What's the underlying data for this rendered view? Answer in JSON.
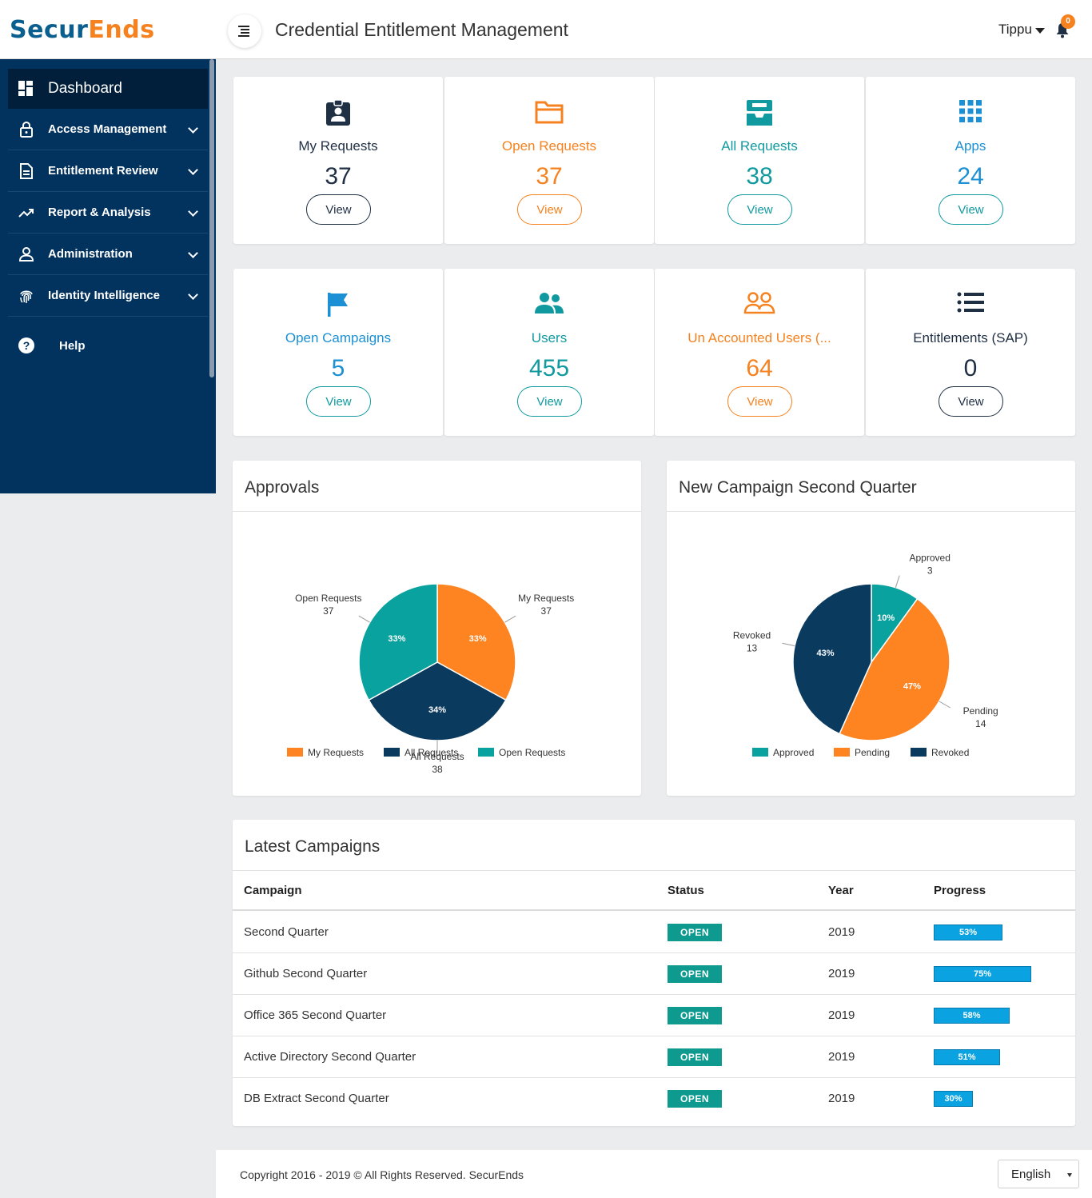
{
  "header": {
    "logo_part1": "Secur",
    "logo_part2": "Ends",
    "title": "Credential Entitlement Management",
    "user": "Tippu",
    "notification_count": "0"
  },
  "sidebar": {
    "items": [
      {
        "label": "Dashboard",
        "icon": "dashboard-icon"
      },
      {
        "label": "Access Management",
        "icon": "lock-icon"
      },
      {
        "label": "Entitlement Review",
        "icon": "document-icon"
      },
      {
        "label": "Report & Analysis",
        "icon": "trend-icon"
      },
      {
        "label": "Administration",
        "icon": "user-icon"
      },
      {
        "label": "Identity Intelligence",
        "icon": "fingerprint-icon"
      },
      {
        "label": "Help",
        "icon": "help-icon"
      }
    ]
  },
  "stats": [
    {
      "label": "My Requests",
      "value": "37",
      "button": "View",
      "icon": "badge-icon",
      "color": "#1f2f44"
    },
    {
      "label": "Open Requests",
      "value": "37",
      "button": "View",
      "icon": "folder-icon",
      "color": "#f5821f"
    },
    {
      "label": "All Requests",
      "value": "38",
      "button": "View",
      "icon": "inbox-icon",
      "color": "#109aa0"
    },
    {
      "label": "Apps",
      "value": "24",
      "button": "View",
      "icon": "apps-grid-icon",
      "color": "#1b90d4"
    },
    {
      "label": "Open Campaigns",
      "value": "5",
      "button": "View",
      "icon": "flag-icon",
      "color": "#1b90d4"
    },
    {
      "label": "Users",
      "value": "455",
      "button": "View",
      "icon": "users-icon",
      "color": "#109aa0"
    },
    {
      "label": "Un Accounted Users (...",
      "value": "64",
      "button": "View",
      "icon": "users-outline-icon",
      "color": "#f5821f"
    },
    {
      "label": "Entitlements (SAP)",
      "value": "0",
      "button": "View",
      "icon": "list-icon",
      "color": "#1f2f44"
    }
  ],
  "approvals": {
    "title": "Approvals"
  },
  "campaign_chart": {
    "title": "New Campaign Second Quarter"
  },
  "chart_data": [
    {
      "type": "pie",
      "title": "Approvals",
      "categories": [
        "My Requests",
        "All Requests",
        "Open Requests"
      ],
      "values": [
        37,
        38,
        37
      ],
      "percent_labels": [
        "33%",
        "34%",
        "33%"
      ],
      "colors": [
        "#fd8421",
        "#0b3a5f",
        "#0aa29e"
      ],
      "legend": "bottom"
    },
    {
      "type": "pie",
      "title": "New Campaign Second Quarter",
      "categories": [
        "Approved",
        "Pending",
        "Revoked"
      ],
      "values": [
        3,
        14,
        13
      ],
      "percent_labels": [
        "10%",
        "47%",
        "43%"
      ],
      "colors": [
        "#0aa29e",
        "#fd8421",
        "#0b3a5f"
      ],
      "legend": "bottom"
    }
  ],
  "campaigns": {
    "title": "Latest Campaigns",
    "headers": [
      "Campaign",
      "Status",
      "Year",
      "Progress"
    ],
    "rows": [
      {
        "name": "Second Quarter",
        "status": "OPEN",
        "year": "2019",
        "progress": "53%",
        "progress_value": 53
      },
      {
        "name": "Github Second Quarter",
        "status": "OPEN",
        "year": "2019",
        "progress": "75%",
        "progress_value": 75
      },
      {
        "name": "Office 365 Second Quarter",
        "status": "OPEN",
        "year": "2019",
        "progress": "58%",
        "progress_value": 58
      },
      {
        "name": "Active Directory Second Quarter",
        "status": "OPEN",
        "year": "2019",
        "progress": "51%",
        "progress_value": 51
      },
      {
        "name": "DB Extract Second Quarter",
        "status": "OPEN",
        "year": "2019",
        "progress": "30%",
        "progress_value": 30
      }
    ]
  },
  "footer": {
    "copyright": "Copyright 2016 - 2019 © All Rights Reserved. SecurEnds",
    "language": "English"
  }
}
